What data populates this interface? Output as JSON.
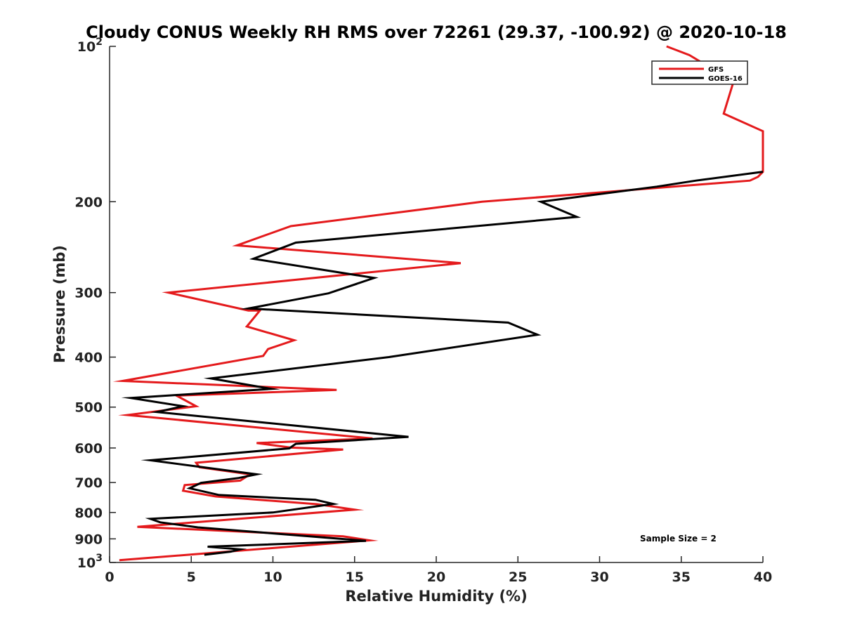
{
  "chart_data": {
    "type": "line",
    "title": "Cloudy CONUS Weekly RH RMS over 72261 (29.37, -100.92) @ 2020-10-18",
    "xlabel": "Relative Humidity (%)",
    "ylabel": "Pressure (mb)",
    "xlim": [
      0,
      40
    ],
    "ylim": [
      100,
      1000
    ],
    "y_scale": "log",
    "y_reversed": true,
    "grid": false,
    "legend_position": "top-right",
    "x_ticks": [
      "0",
      "5",
      "10",
      "15",
      "20",
      "25",
      "30",
      "35",
      "40"
    ],
    "y_ticks": [
      {
        "p": 100,
        "base": "10",
        "exp": "2"
      },
      {
        "p": 200,
        "base": "200",
        "exp": ""
      },
      {
        "p": 300,
        "base": "300",
        "exp": ""
      },
      {
        "p": 400,
        "base": "400",
        "exp": ""
      },
      {
        "p": 500,
        "base": "500",
        "exp": ""
      },
      {
        "p": 600,
        "base": "600",
        "exp": ""
      },
      {
        "p": 700,
        "base": "700",
        "exp": ""
      },
      {
        "p": 800,
        "base": "800",
        "exp": ""
      },
      {
        "p": 900,
        "base": "900",
        "exp": ""
      },
      {
        "p": 1000,
        "base": "10",
        "exp": "3"
      }
    ],
    "annotation": "Sample Size = 2",
    "series": [
      {
        "name": "GFS",
        "color": "#e41a1c",
        "points": [
          [
            34.1,
            100
          ],
          [
            35.5,
            104
          ],
          [
            38.0,
            116
          ],
          [
            38.2,
            117
          ],
          [
            37.6,
            135
          ],
          [
            40.0,
            146
          ],
          [
            40.0,
            175
          ],
          [
            39.7,
            179
          ],
          [
            39.2,
            182
          ],
          [
            22.8,
            200
          ],
          [
            11.1,
            223
          ],
          [
            7.8,
            243
          ],
          [
            21.5,
            263
          ],
          [
            3.6,
            300
          ],
          [
            8.5,
            325
          ],
          [
            9.2,
            325
          ],
          [
            8.4,
            349
          ],
          [
            11.3,
            371
          ],
          [
            9.7,
            386
          ],
          [
            9.4,
            398
          ],
          [
            0.8,
            445
          ],
          [
            13.9,
            463
          ],
          [
            4.1,
            475
          ],
          [
            5.3,
            498
          ],
          [
            1.1,
            518
          ],
          [
            16.1,
            575
          ],
          [
            9.0,
            587
          ],
          [
            11.1,
            599
          ],
          [
            14.3,
            604
          ],
          [
            5.3,
            641
          ],
          [
            5.5,
            654
          ],
          [
            8.6,
            675
          ],
          [
            8.0,
            694
          ],
          [
            4.6,
            708
          ],
          [
            4.5,
            726
          ],
          [
            6.5,
            745
          ],
          [
            12.7,
            771
          ],
          [
            15.0,
            790
          ],
          [
            1.7,
            853
          ],
          [
            14.3,
            890
          ],
          [
            15.9,
            906
          ],
          [
            0.6,
            990
          ]
        ]
      },
      {
        "name": "GOES-16",
        "color": "#000000",
        "points": [
          [
            40.0,
            175
          ],
          [
            35.9,
            182
          ],
          [
            33.5,
            187
          ],
          [
            26.4,
            200
          ],
          [
            28.6,
            214
          ],
          [
            11.4,
            240
          ],
          [
            8.8,
            258
          ],
          [
            16.2,
            281
          ],
          [
            13.4,
            301
          ],
          [
            8.5,
            322
          ],
          [
            24.4,
            343
          ],
          [
            26.2,
            362
          ],
          [
            17.1,
            400
          ],
          [
            6.2,
            440
          ],
          [
            9.9,
            461
          ],
          [
            1.3,
            480
          ],
          [
            4.5,
            498
          ],
          [
            2.9,
            511
          ],
          [
            18.3,
            571
          ],
          [
            11.4,
            589
          ],
          [
            11.0,
            601
          ],
          [
            2.5,
            634
          ],
          [
            9.0,
            675
          ],
          [
            7.9,
            686
          ],
          [
            5.6,
            701
          ],
          [
            4.9,
            718
          ],
          [
            6.7,
            740
          ],
          [
            12.6,
            756
          ],
          [
            13.7,
            770
          ],
          [
            10.0,
            800
          ],
          [
            2.5,
            823
          ],
          [
            3.1,
            836
          ],
          [
            5.4,
            855
          ],
          [
            15.7,
            908
          ],
          [
            6.0,
            932
          ],
          [
            8.0,
            943
          ],
          [
            7.4,
            953
          ],
          [
            5.8,
            966
          ]
        ]
      }
    ]
  }
}
